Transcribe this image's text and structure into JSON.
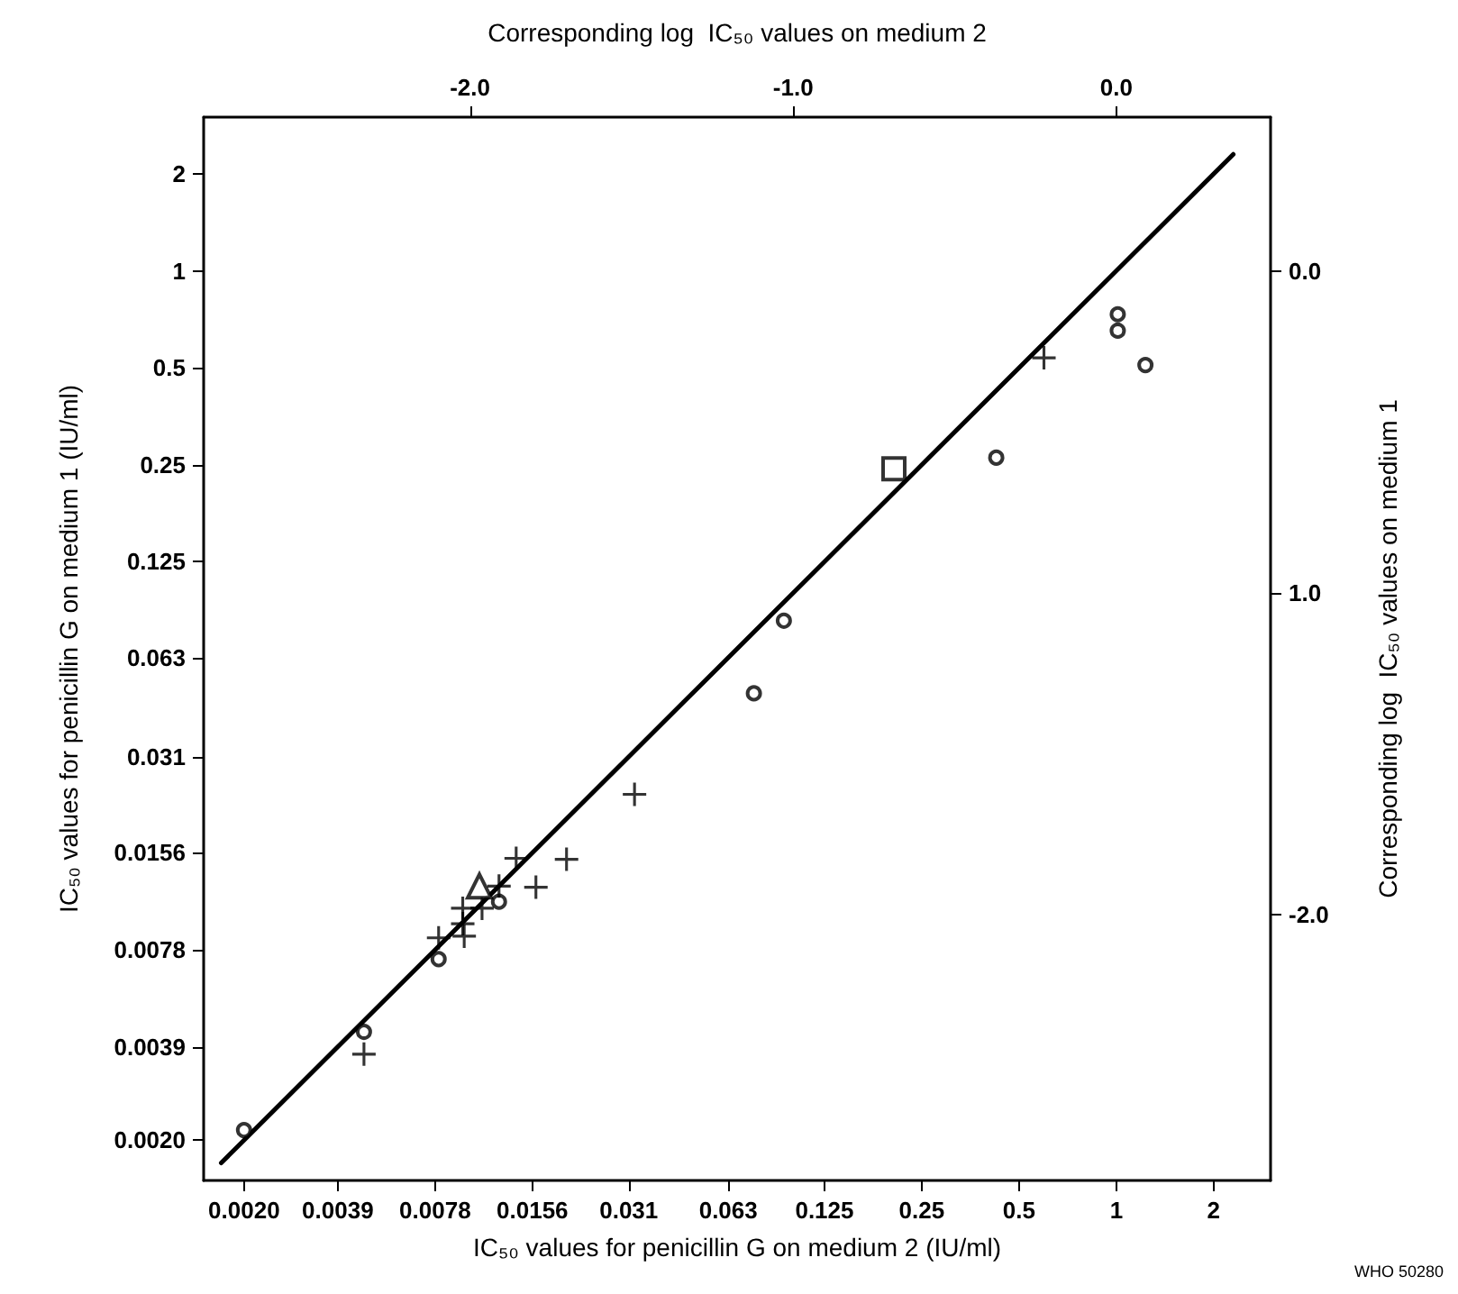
{
  "chart_data": {
    "type": "scatter",
    "xlabel": "IC₅₀ values for penicillin G on medium 2 (IU/ml)",
    "ylabel": "IC₅₀ values for penicillin G on medium 1 (IU/ml)",
    "x2label": "Corresponding log  IC₅₀ values on medium 2",
    "y2label": "Corresponding log  IC₅₀ values on medium 1",
    "log": "xy",
    "grid": false,
    "xlim": [
      0.0015,
      3
    ],
    "ylim": [
      0.0015,
      3
    ],
    "xticks": [
      {
        "value": 0.002,
        "label": "0.0020"
      },
      {
        "value": 0.0039,
        "label": "0.0039"
      },
      {
        "value": 0.0078,
        "label": "0.0078"
      },
      {
        "value": 0.0156,
        "label": "0.0156"
      },
      {
        "value": 0.031,
        "label": "0.031"
      },
      {
        "value": 0.063,
        "label": "0.063"
      },
      {
        "value": 0.125,
        "label": "0.125"
      },
      {
        "value": 0.25,
        "label": "0.25"
      },
      {
        "value": 0.5,
        "label": "0.5"
      },
      1,
      2
    ],
    "yticks": [
      {
        "value": 0.002,
        "label": "0.0020"
      },
      {
        "value": 0.0039,
        "label": "0.0039"
      },
      {
        "value": 0.0078,
        "label": "0.0078"
      },
      {
        "value": 0.0156,
        "label": "0.0156"
      },
      {
        "value": 0.031,
        "label": "0.031"
      },
      {
        "value": 0.063,
        "label": "0.063"
      },
      {
        "value": 0.125,
        "label": "0.125"
      },
      {
        "value": 0.25,
        "label": "0.25"
      },
      {
        "value": 0.5,
        "label": "0.5"
      },
      1,
      2
    ],
    "x2lim": [
      -2.824,
      0.477
    ],
    "x2ticks": [
      {
        "value": -2,
        "label": "-2.0"
      },
      {
        "value": -1,
        "label": "-1.0"
      },
      {
        "value": 0,
        "label": "0.0"
      }
    ],
    "y2lim": [
      -2.824,
      0.477
    ],
    "y2ticks": [
      {
        "value": -2,
        "label": "-2.0"
      },
      {
        "value": -1,
        "label": "1.0"
      },
      {
        "value": 0,
        "label": "0.0"
      }
    ],
    "series": [
      {
        "marker": "circle",
        "color": "#000000",
        "x": [
          0.002,
          0.0047,
          0.008,
          0.0123,
          0.0756,
          0.0936,
          0.425,
          1.01,
          1.01,
          1.23
        ],
        "values": [
          0.00215,
          0.00434,
          0.0073,
          0.011,
          0.0488,
          0.082,
          0.263,
          0.733,
          0.652,
          0.51
        ]
      },
      {
        "marker": "cross",
        "color": "#000000",
        "x": [
          0.0139,
          0.0199,
          0.016,
          0.0123,
          0.0095,
          0.0095,
          0.0096,
          0.008,
          0.0109,
          0.0047,
          0.0323,
          0.597
        ],
        "values": [
          0.015,
          0.0149,
          0.0122,
          0.0123,
          0.0105,
          0.0094,
          0.0086,
          0.0085,
          0.0105,
          0.0037,
          0.0237,
          0.537
        ]
      },
      {
        "marker": "triangle",
        "color": "#000000",
        "x": [
          0.0107
        ],
        "values": [
          0.0123
        ]
      },
      {
        "marker": "square",
        "color": "#000000",
        "x": [
          0.205
        ],
        "values": [
          0.243
        ]
      },
      {
        "type": "line",
        "marker": "none",
        "line_style": "solid",
        "color": "#000000",
        "x": [
          0.0017,
          2.3
        ],
        "values": [
          0.0017,
          2.3
        ]
      }
    ],
    "annotations": [
      "WHO 50280"
    ]
  }
}
